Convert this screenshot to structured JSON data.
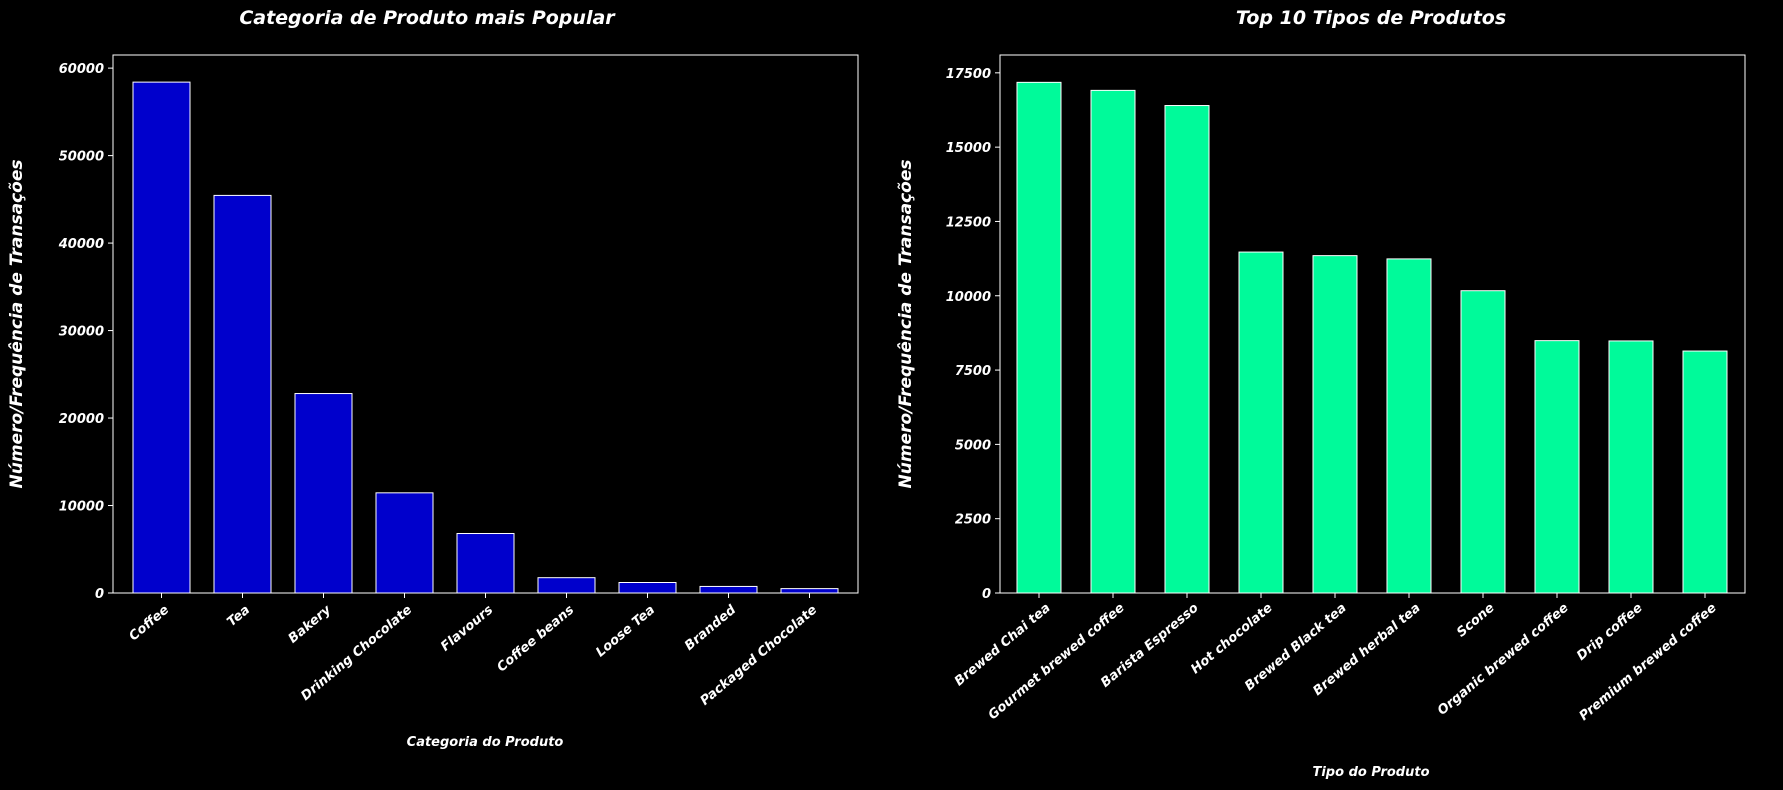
{
  "colors": {
    "background": "#000000",
    "text": "#ffffff",
    "axis": "#ffffff",
    "bar_outline": "#ffffff"
  },
  "chart_data": [
    {
      "type": "bar",
      "title": "Categoria de Produto mais Popular",
      "xlabel": "Categoria do Produto",
      "ylabel": "Número/Frequência de Transações",
      "color": "#0000cc",
      "categories": [
        "Coffee",
        "Tea",
        "Bakery",
        "Drinking Chocolate",
        "Flavours",
        "Coffee beans",
        "Loose Tea",
        "Branded",
        "Packaged Chocolate"
      ],
      "values": [
        58400,
        45450,
        22800,
        11450,
        6800,
        1750,
        1200,
        750,
        500
      ],
      "ylim": [
        0,
        61500
      ],
      "yticks": [
        0,
        10000,
        20000,
        30000,
        40000,
        50000,
        60000
      ],
      "grid": false
    },
    {
      "type": "bar",
      "title": "Top 10 Tipos de Produtos",
      "xlabel": "Tipo do Produto",
      "ylabel": "Número/Frequência de Transações",
      "color": "#00fa9a",
      "categories": [
        "Brewed Chai tea",
        "Gourmet brewed coffee",
        "Barista Espresso",
        "Hot chocolate",
        "Brewed Black tea",
        "Brewed herbal tea",
        "Scone",
        "Organic brewed coffee",
        "Drip coffee",
        "Premium brewed coffee"
      ],
      "values": [
        17180,
        16910,
        16400,
        11470,
        11350,
        11240,
        10170,
        8490,
        8480,
        8140
      ],
      "ylim": [
        0,
        18100
      ],
      "yticks": [
        0,
        2500,
        5000,
        7500,
        10000,
        12500,
        15000,
        17500
      ],
      "grid": false
    }
  ]
}
